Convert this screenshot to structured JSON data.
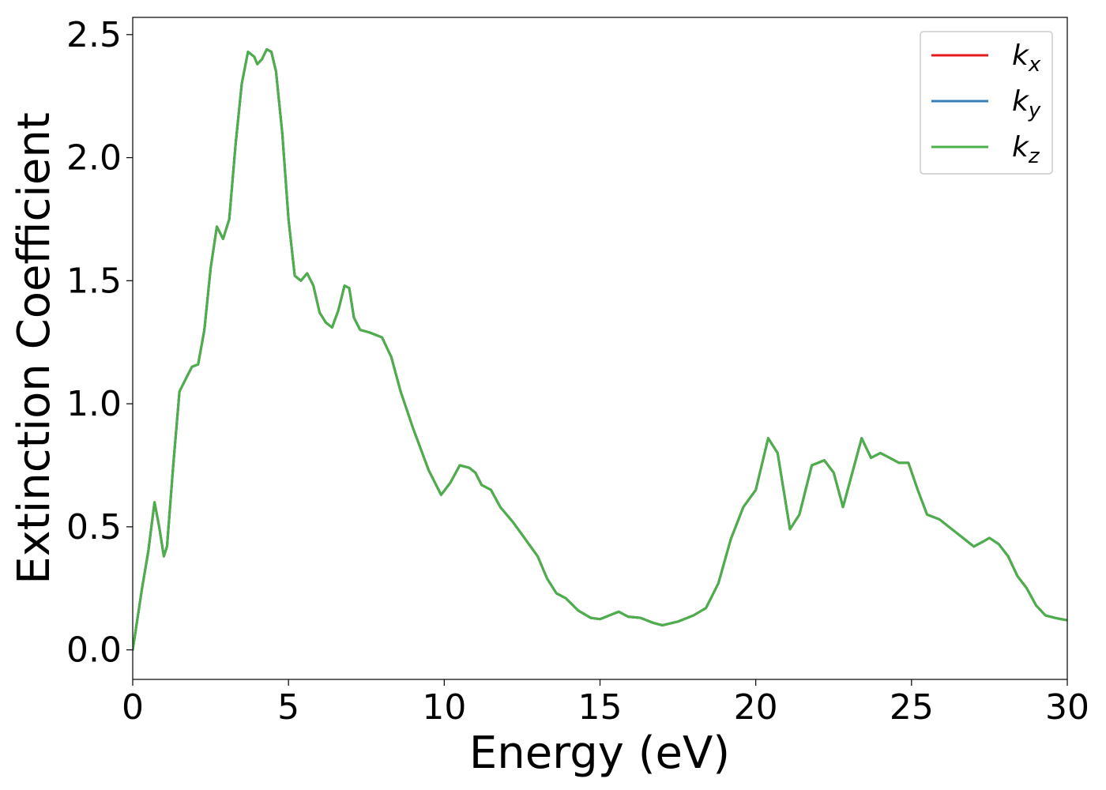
{
  "chart_data": {
    "type": "line",
    "xlabel": "Energy (eV)",
    "ylabel": "Extinction Coefficient",
    "xlim": [
      0,
      30
    ],
    "ylim": [
      -0.12,
      2.57
    ],
    "x_ticks": [
      0,
      5,
      10,
      15,
      20,
      25,
      30
    ],
    "y_ticks": [
      0.0,
      0.5,
      1.0,
      1.5,
      2.0,
      2.5
    ],
    "x_tick_labels": [
      "0",
      "5",
      "10",
      "15",
      "20",
      "25",
      "30"
    ],
    "y_tick_labels": [
      "0.0",
      "0.5",
      "1.0",
      "1.5",
      "2.0",
      "2.5"
    ],
    "grid": false,
    "legend_position": "top-right",
    "x": [
      0,
      0.3,
      0.5,
      0.7,
      0.85,
      1.0,
      1.1,
      1.3,
      1.5,
      1.7,
      1.9,
      2.1,
      2.3,
      2.5,
      2.7,
      2.9,
      3.1,
      3.3,
      3.5,
      3.7,
      3.9,
      4.0,
      4.15,
      4.3,
      4.45,
      4.6,
      4.8,
      5.0,
      5.2,
      5.4,
      5.6,
      5.8,
      6.0,
      6.2,
      6.4,
      6.6,
      6.8,
      6.95,
      7.1,
      7.3,
      7.6,
      8.0,
      8.3,
      8.6,
      9.0,
      9.5,
      9.9,
      10.2,
      10.5,
      10.8,
      11.0,
      11.2,
      11.5,
      11.8,
      12.2,
      12.6,
      13.0,
      13.3,
      13.6,
      13.9,
      14.3,
      14.7,
      15.0,
      15.3,
      15.6,
      15.9,
      16.3,
      16.7,
      17.0,
      17.5,
      18.0,
      18.4,
      18.8,
      19.2,
      19.6,
      20.0,
      20.4,
      20.7,
      21.1,
      21.4,
      21.8,
      22.2,
      22.5,
      22.8,
      23.1,
      23.4,
      23.7,
      24.0,
      24.3,
      24.6,
      24.9,
      25.2,
      25.5,
      25.9,
      26.3,
      26.7,
      27.0,
      27.3,
      27.5,
      27.8,
      28.1,
      28.4,
      28.7,
      29.0,
      29.3,
      29.6,
      30.0
    ],
    "series": [
      {
        "name": "k_x",
        "label_base": "k",
        "label_sub": "x",
        "color": "#e41a1c",
        "y": [
          0.0,
          0.25,
          0.4,
          0.6,
          0.5,
          0.38,
          0.42,
          0.75,
          1.05,
          1.1,
          1.15,
          1.16,
          1.3,
          1.55,
          1.72,
          1.67,
          1.75,
          2.05,
          2.3,
          2.43,
          2.41,
          2.38,
          2.4,
          2.44,
          2.43,
          2.35,
          2.1,
          1.75,
          1.52,
          1.5,
          1.53,
          1.48,
          1.37,
          1.33,
          1.31,
          1.38,
          1.48,
          1.47,
          1.35,
          1.3,
          1.29,
          1.27,
          1.19,
          1.05,
          0.9,
          0.73,
          0.63,
          0.68,
          0.75,
          0.74,
          0.72,
          0.67,
          0.65,
          0.58,
          0.52,
          0.45,
          0.38,
          0.29,
          0.23,
          0.21,
          0.16,
          0.13,
          0.125,
          0.14,
          0.155,
          0.135,
          0.13,
          0.11,
          0.1,
          0.115,
          0.14,
          0.17,
          0.27,
          0.45,
          0.58,
          0.65,
          0.86,
          0.8,
          0.49,
          0.55,
          0.75,
          0.77,
          0.72,
          0.58,
          0.72,
          0.86,
          0.78,
          0.8,
          0.78,
          0.76,
          0.76,
          0.65,
          0.55,
          0.53,
          0.49,
          0.45,
          0.42,
          0.44,
          0.455,
          0.43,
          0.38,
          0.3,
          0.25,
          0.18,
          0.14,
          0.13,
          0.12
        ]
      },
      {
        "name": "k_y",
        "label_base": "k",
        "label_sub": "y",
        "color": "#377eb8",
        "y": [
          0.0,
          0.25,
          0.4,
          0.6,
          0.5,
          0.38,
          0.42,
          0.75,
          1.05,
          1.1,
          1.15,
          1.16,
          1.3,
          1.55,
          1.72,
          1.67,
          1.75,
          2.05,
          2.3,
          2.43,
          2.41,
          2.38,
          2.4,
          2.44,
          2.43,
          2.35,
          2.1,
          1.75,
          1.52,
          1.5,
          1.53,
          1.48,
          1.37,
          1.33,
          1.31,
          1.38,
          1.48,
          1.47,
          1.35,
          1.3,
          1.29,
          1.27,
          1.19,
          1.05,
          0.9,
          0.73,
          0.63,
          0.68,
          0.75,
          0.74,
          0.72,
          0.67,
          0.65,
          0.58,
          0.52,
          0.45,
          0.38,
          0.29,
          0.23,
          0.21,
          0.16,
          0.13,
          0.125,
          0.14,
          0.155,
          0.135,
          0.13,
          0.11,
          0.1,
          0.115,
          0.14,
          0.17,
          0.27,
          0.45,
          0.58,
          0.65,
          0.86,
          0.8,
          0.49,
          0.55,
          0.75,
          0.77,
          0.72,
          0.58,
          0.72,
          0.86,
          0.78,
          0.8,
          0.78,
          0.76,
          0.76,
          0.65,
          0.55,
          0.53,
          0.49,
          0.45,
          0.42,
          0.44,
          0.455,
          0.43,
          0.38,
          0.3,
          0.25,
          0.18,
          0.14,
          0.13,
          0.12
        ]
      },
      {
        "name": "k_z",
        "label_base": "k",
        "label_sub": "z",
        "color": "#4daf4a",
        "y": [
          0.0,
          0.25,
          0.4,
          0.6,
          0.5,
          0.38,
          0.42,
          0.75,
          1.05,
          1.1,
          1.15,
          1.16,
          1.3,
          1.55,
          1.72,
          1.67,
          1.75,
          2.05,
          2.3,
          2.43,
          2.41,
          2.38,
          2.4,
          2.44,
          2.43,
          2.35,
          2.1,
          1.75,
          1.52,
          1.5,
          1.53,
          1.48,
          1.37,
          1.33,
          1.31,
          1.38,
          1.48,
          1.47,
          1.35,
          1.3,
          1.29,
          1.27,
          1.19,
          1.05,
          0.9,
          0.73,
          0.63,
          0.68,
          0.75,
          0.74,
          0.72,
          0.67,
          0.65,
          0.58,
          0.52,
          0.45,
          0.38,
          0.29,
          0.23,
          0.21,
          0.16,
          0.13,
          0.125,
          0.14,
          0.155,
          0.135,
          0.13,
          0.11,
          0.1,
          0.115,
          0.14,
          0.17,
          0.27,
          0.45,
          0.58,
          0.65,
          0.86,
          0.8,
          0.49,
          0.55,
          0.75,
          0.77,
          0.72,
          0.58,
          0.72,
          0.86,
          0.78,
          0.8,
          0.78,
          0.76,
          0.76,
          0.65,
          0.55,
          0.53,
          0.49,
          0.45,
          0.42,
          0.44,
          0.455,
          0.43,
          0.38,
          0.3,
          0.25,
          0.18,
          0.14,
          0.13,
          0.12
        ]
      }
    ]
  }
}
